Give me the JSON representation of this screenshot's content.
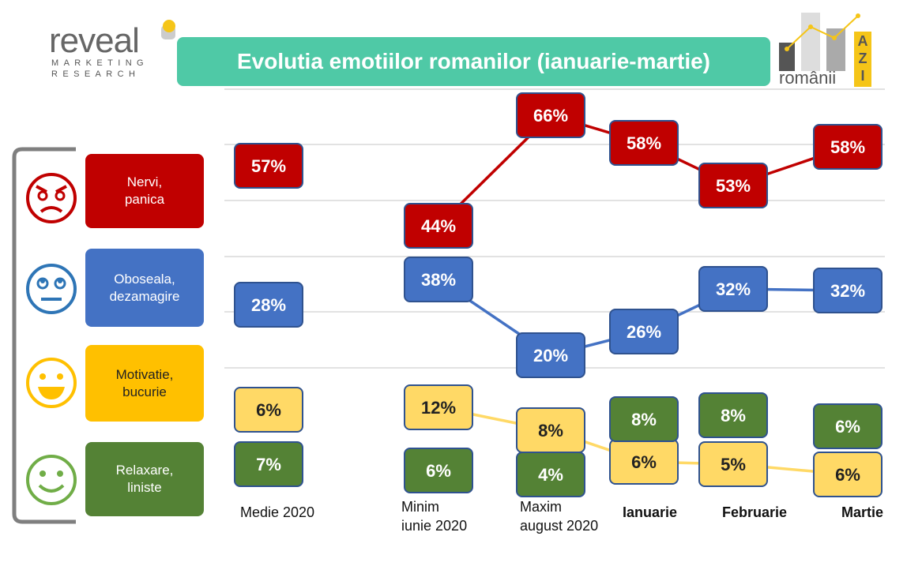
{
  "header": {
    "title": "Evolutia emotiilor romanilor (ianuarie-martie)",
    "reveal_logo": {
      "word": "reveal",
      "line1": "MARKETING",
      "line2": "RESEARCH"
    },
    "romanii_logo": {
      "word": "românii",
      "azi": [
        "A",
        "Z",
        "I"
      ]
    }
  },
  "legend": [
    {
      "line1": "Nervi,",
      "line2": "panica",
      "color": "#c00000",
      "face": "angry-face-icon"
    },
    {
      "line1": "Oboseala,",
      "line2": "dezamagire",
      "color": "#4472c4",
      "face": "tired-face-icon"
    },
    {
      "line1": "Motivatie,",
      "line2": "bucurie",
      "color": "#ffc000",
      "face": "happy-face-icon"
    },
    {
      "line1": "Relaxare,",
      "line2": "liniste",
      "color": "#548235",
      "face": "calm-face-icon"
    }
  ],
  "chart_data": {
    "type": "line",
    "title": "Evolutia emotiilor romanilor (ianuarie-martie)",
    "categories": [
      [
        "Medie 2020"
      ],
      [
        "Minim",
        "iunie 2020"
      ],
      [
        "Maxim",
        "august 2020"
      ],
      [
        "Ianuarie"
      ],
      [
        "Februarie"
      ],
      [
        "Martie"
      ]
    ],
    "category_bold": [
      false,
      false,
      false,
      true,
      true,
      true
    ],
    "unit": "%",
    "grid": true,
    "series": [
      {
        "name": "Nervi, panica",
        "color": "#c00000",
        "label_color": "#ffffff",
        "values": [
          57,
          44,
          66,
          58,
          53,
          58
        ],
        "connected_from": 1
      },
      {
        "name": "Oboseala, dezamagire",
        "color": "#4472c4",
        "label_color": "#ffffff",
        "values": [
          28,
          38,
          20,
          26,
          32,
          32
        ],
        "connected_from": 1
      },
      {
        "name": "Motivatie, bucurie",
        "color": "#ffd966",
        "label_color": "#222222",
        "values": [
          6,
          12,
          8,
          6,
          5,
          6
        ],
        "connected_from": 1
      },
      {
        "name": "Relaxare, liniste",
        "color": "#548235",
        "label_color": "#ffffff",
        "values": [
          7,
          6,
          4,
          8,
          8,
          6
        ],
        "connected_from": null
      }
    ]
  }
}
